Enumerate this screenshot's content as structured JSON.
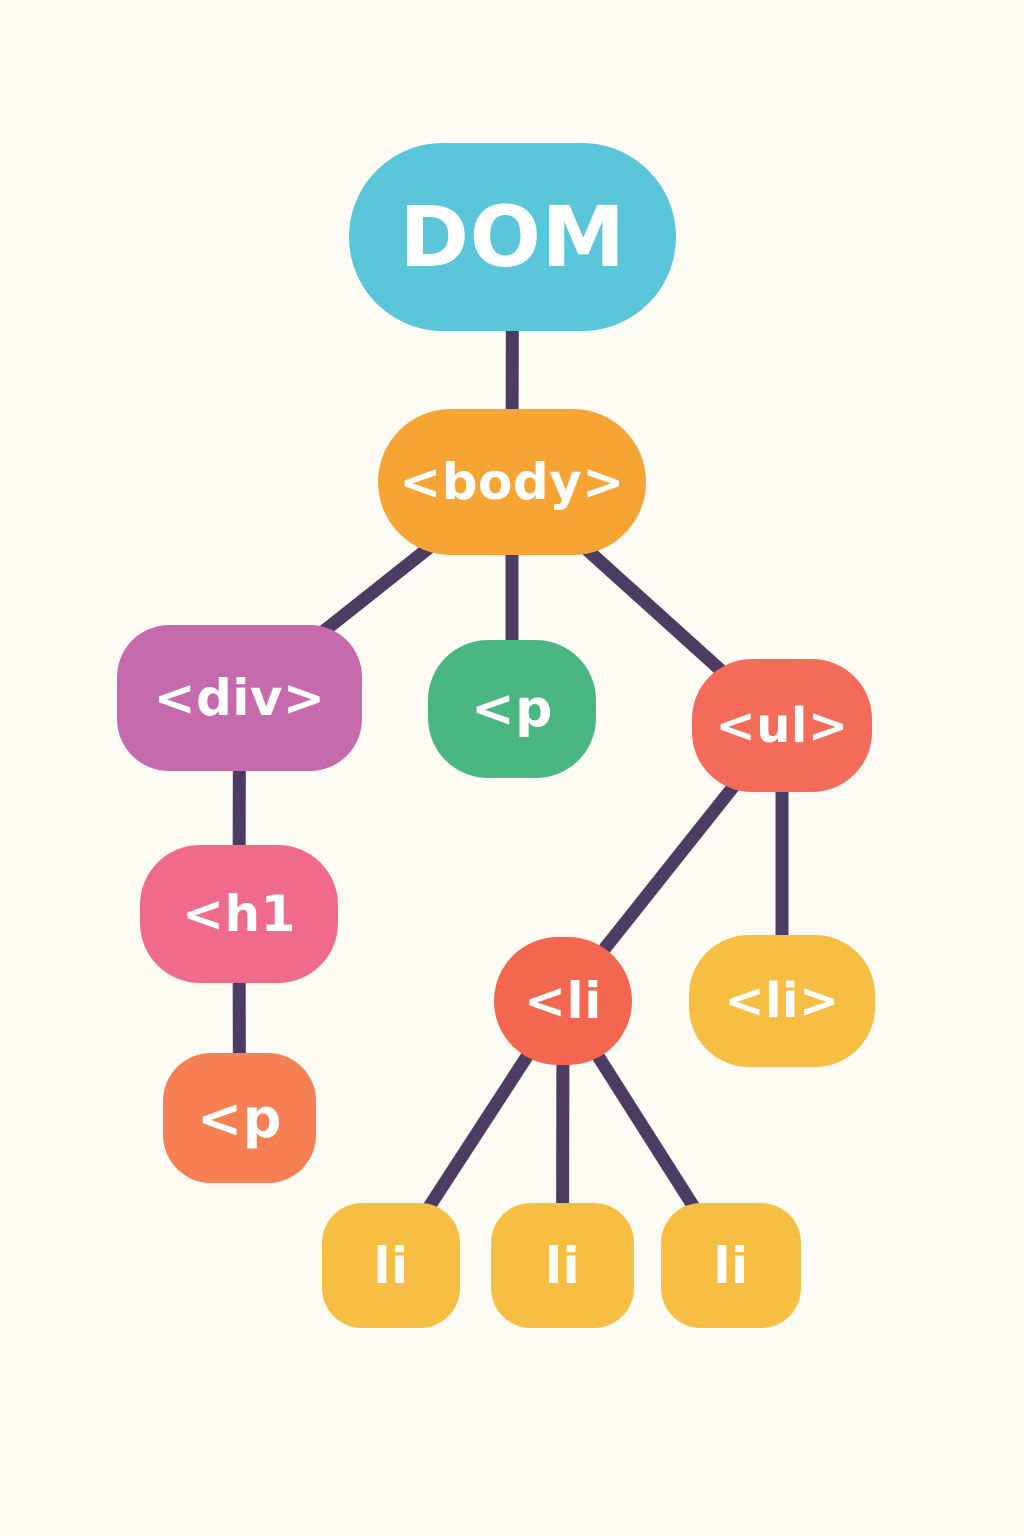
{
  "colors": {
    "background": "#fdfbf3",
    "edge": "#4c3c62",
    "dom": "#5bc6d9",
    "body": "#f6a535",
    "div": "#c56bac",
    "p": "#4ab682",
    "ul": "#f36c5a",
    "h1": "#f06a8c",
    "li": "#f3664f",
    "li_yellow": "#f6bf44",
    "p_orange": "#f77f54"
  },
  "nodes": {
    "dom": "DOM",
    "body": "<body>",
    "div": "<div>",
    "p_top": "<p",
    "ul": "<ul>",
    "h1": "<h1",
    "li_red": "<li",
    "li_closed": "<li>",
    "p_bottom": "<p",
    "leaf_1": "li",
    "leaf_2": "li",
    "leaf_3": "li"
  },
  "edges": [
    {
      "from": "dom",
      "to": "body"
    },
    {
      "from": "body",
      "to": "div"
    },
    {
      "from": "body",
      "to": "p_top"
    },
    {
      "from": "body",
      "to": "ul"
    },
    {
      "from": "div",
      "to": "h1"
    },
    {
      "from": "h1",
      "to": "p_bottom"
    },
    {
      "from": "ul",
      "to": "li_red"
    },
    {
      "from": "ul",
      "to": "li_closed"
    },
    {
      "from": "li_red",
      "to": "leaf_1"
    },
    {
      "from": "li_red",
      "to": "leaf_2"
    },
    {
      "from": "li_red",
      "to": "leaf_3"
    }
  ]
}
